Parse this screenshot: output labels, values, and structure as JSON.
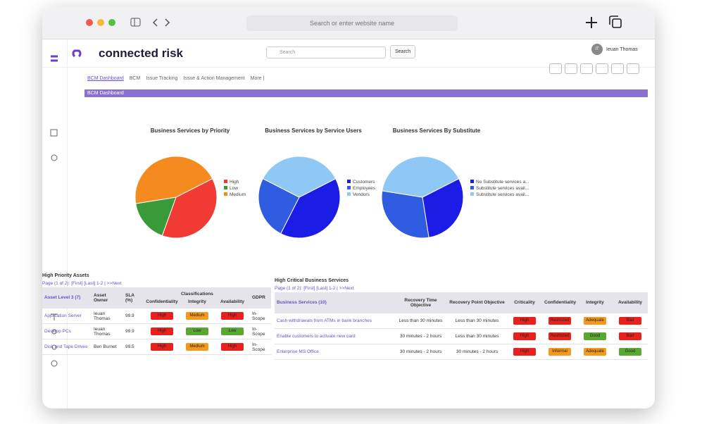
{
  "browser": {
    "address_placeholder": "Search or enter website name"
  },
  "app": {
    "brand": "connected risk",
    "search_placeholder": "Search",
    "search_button": "Search",
    "user_initials": "IT",
    "user_name": "Ieuan Thomas"
  },
  "tabs": [
    "BCM Dashboard",
    "BCM",
    "Issue Tracking",
    "Issue & Action Management",
    "More |"
  ],
  "section_title": "BCM Dashboard",
  "charts": [
    {
      "type": "pie",
      "title": "Business Services by Priority",
      "slices": [
        {
          "label": "High",
          "value": 38,
          "color": "#f03a33"
        },
        {
          "label": "Low",
          "value": 17,
          "color": "#3a9a3a"
        },
        {
          "label": "Medium",
          "value": 45,
          "color": "#f58a1f"
        }
      ]
    },
    {
      "type": "pie",
      "title": "Business Services by Service Users",
      "slices": [
        {
          "label": "Customers",
          "value": 40,
          "color": "#1b1de6"
        },
        {
          "label": "Employees",
          "value": 25,
          "color": "#2f5ce0"
        },
        {
          "label": "Vendors",
          "value": 35,
          "color": "#8fc8f5"
        }
      ]
    },
    {
      "type": "pie",
      "title": "Business Services By Substitute",
      "slices": [
        {
          "label": "No Substitute services a...",
          "value": 30,
          "color": "#1b1de6"
        },
        {
          "label": "Substitute services avail...",
          "value": 30,
          "color": "#2f5ce0"
        },
        {
          "label": "Substitute services avail...",
          "value": 40,
          "color": "#8fc8f5"
        }
      ]
    }
  ],
  "assets": {
    "title": "High Priority Assets",
    "pager": "Page (1 of 2): [First] [Last] 1-2 | >>Next",
    "headers": [
      "Asset Level 3 (7)",
      "Asset Owner",
      "SLA (%)",
      "Classifications",
      "GDPR"
    ],
    "subheaders": [
      "Confidentiality",
      "Integrity",
      "Availability"
    ],
    "rows": [
      {
        "name": "Application Server",
        "owner": "Ieuan Thomas",
        "sla": "99.9",
        "badges": [
          {
            "label": "High",
            "color": "#e8211c"
          },
          {
            "label": "Medium",
            "color": "#f39a1d"
          },
          {
            "label": "High",
            "color": "#e8211c"
          }
        ],
        "gdpr": "In-Scope"
      },
      {
        "name": "Desktop PCs",
        "owner": "Ieuan Thomas",
        "sla": "99.9",
        "badges": [
          {
            "label": "High",
            "color": "#e8211c"
          },
          {
            "label": "Low",
            "color": "#5aa832"
          },
          {
            "label": "Low",
            "color": "#5aa832"
          }
        ],
        "gdpr": "In-Scope"
      },
      {
        "name": "Disk and Tape Drives",
        "owner": "Ben Burnet",
        "sla": "99.5",
        "badges": [
          {
            "label": "High",
            "color": "#e8211c"
          },
          {
            "label": "Medium",
            "color": "#f39a1d"
          },
          {
            "label": "High",
            "color": "#e8211c"
          }
        ],
        "gdpr": "In-Scope"
      }
    ]
  },
  "services": {
    "title": "High Critical Business Services",
    "pager": "Page (1 of 2): [First] [Last] 1-2 | >>Next",
    "headers": [
      "Business Services (10)",
      "Recovery Time Objective",
      "Recovery Point Objective",
      "Criticality",
      "Confidentiality",
      "Integrity",
      "Availability"
    ],
    "rows": [
      {
        "name": "Cash withdrawals from ATMs in bank branches",
        "rto": "Less than 30 minutes",
        "rpo": "Less than 30 minutes",
        "badges": [
          {
            "label": "High",
            "color": "#e8211c"
          },
          {
            "label": "Restricted",
            "color": "#e8211c"
          },
          {
            "label": "Adequate",
            "color": "#f39a1d"
          },
          {
            "label": "Bad",
            "color": "#e8211c"
          }
        ]
      },
      {
        "name": "Enable customers to activate new card",
        "rto": "30 minutes - 2 hours",
        "rpo": "Less than 30 minutes",
        "badges": [
          {
            "label": "High",
            "color": "#e8211c"
          },
          {
            "label": "Restricted",
            "color": "#e8211c"
          },
          {
            "label": "Good",
            "color": "#5aa832"
          },
          {
            "label": "Bad",
            "color": "#e8211c"
          }
        ]
      },
      {
        "name": "Enterprise MS Office",
        "rto": "30 minutes - 2 hours",
        "rpo": "30 minutes - 2 hours",
        "badges": [
          {
            "label": "High",
            "color": "#e8211c"
          },
          {
            "label": "Informal",
            "color": "#f39a1d"
          },
          {
            "label": "Adequate",
            "color": "#f39a1d"
          },
          {
            "label": "Good",
            "color": "#5aa832"
          }
        ]
      }
    ]
  }
}
